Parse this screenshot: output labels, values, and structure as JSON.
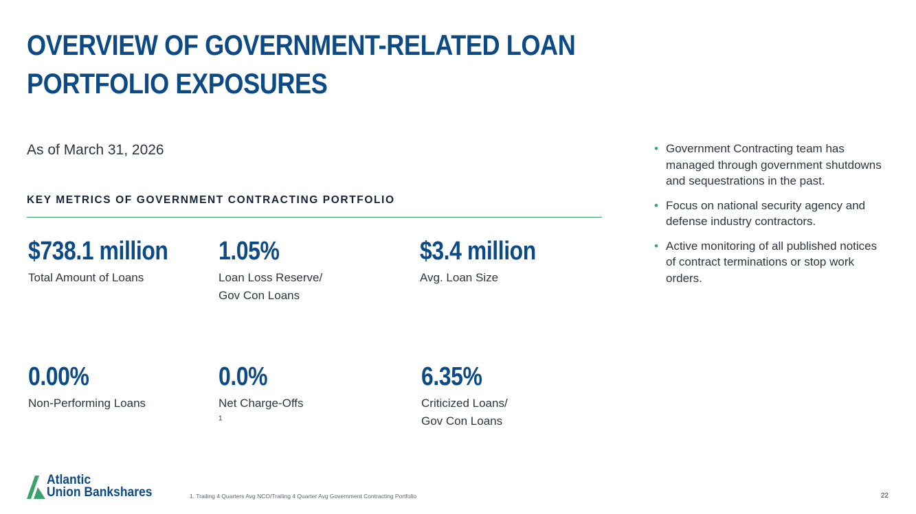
{
  "title": {
    "line1": "OVERVIEW OF GOVERNMENT-RELATED LOAN",
    "line2": "PORTFOLIO EXPOSURES"
  },
  "subtitle": "As of March 31, 2026",
  "section_heading": "KEY METRICS OF GOVERNMENT CONTRACTING PORTFOLIO",
  "metrics": [
    {
      "value": "$738.1 million",
      "label": [
        "Total Amount of Loans"
      ]
    },
    {
      "value": "1.05%",
      "label": [
        "Loan Loss Reserve/",
        "Gov Con Loans"
      ]
    },
    {
      "value": "$3.4 million",
      "label": [
        "Avg. Loan Size"
      ]
    },
    {
      "value": "0.00%",
      "label": [
        "Non-Performing Loans"
      ]
    },
    {
      "value": "0.0%",
      "label": [
        "Net Charge-Offs"
      ],
      "sup": "1"
    },
    {
      "value": "6.35%",
      "label": [
        "Criticized Loans/",
        "Gov Con Loans"
      ]
    }
  ],
  "bullets": [
    "Government Contracting team has managed through government shutdowns and sequestrations in the past.",
    "Focus on national security agency and defense industry contractors.",
    "Active monitoring of all published notices of contract terminations or stop work orders."
  ],
  "logo": {
    "line1": "Atlantic",
    "line2": "Union Bankshares",
    "icon": "atlantic-union-a-mark-icon"
  },
  "footnote": "1. Trailing 4 Quarters Avg NCO/Trailing 4 Quarter Avg Government Contracting Portfolio",
  "page_number": "22",
  "colors": {
    "brand_blue": "#0b4a85",
    "accent_green": "#3aa16b",
    "text": "#2b3440"
  }
}
